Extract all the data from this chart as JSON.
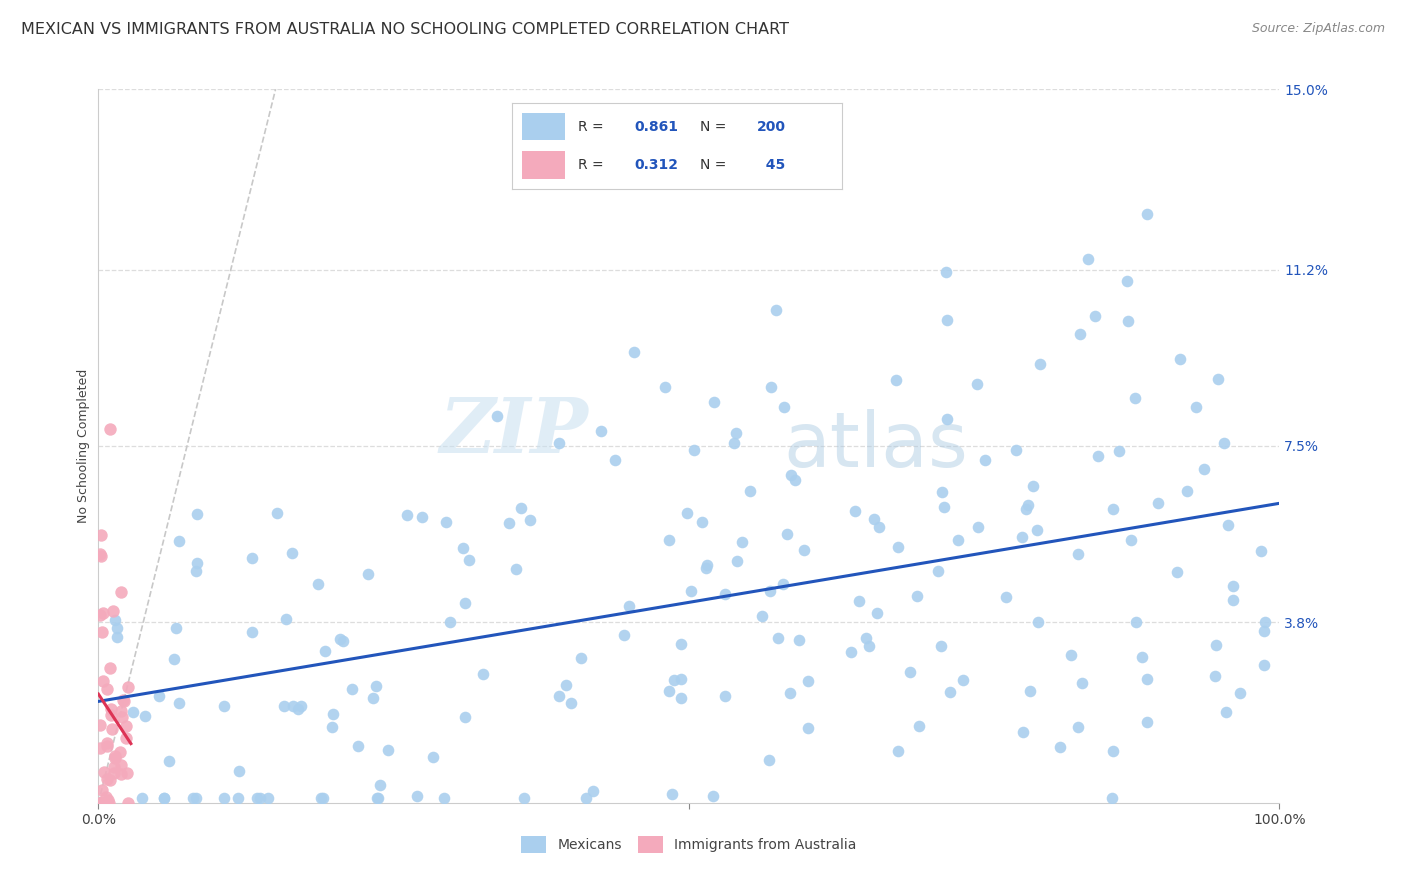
{
  "title": "MEXICAN VS IMMIGRANTS FROM AUSTRALIA NO SCHOOLING COMPLETED CORRELATION CHART",
  "source": "Source: ZipAtlas.com",
  "ylabel": "No Schooling Completed",
  "xlim": [
    0,
    1.0
  ],
  "ylim": [
    0,
    0.15
  ],
  "ytick_labels": [
    "3.8%",
    "7.5%",
    "11.2%",
    "15.0%"
  ],
  "ytick_values": [
    0.038,
    0.075,
    0.112,
    0.15
  ],
  "watermark_zip": "ZIP",
  "watermark_atlas": "atlas",
  "blue_color": "#aacfee",
  "pink_color": "#f4aabc",
  "blue_line_color": "#2255bb",
  "pink_line_color": "#dd3355",
  "diagonal_color": "#c8c8c8",
  "R_blue": 0.861,
  "N_blue": 200,
  "R_pink": 0.312,
  "N_pink": 45,
  "legend_blue_label": "Mexicans",
  "legend_pink_label": "Immigrants from Australia",
  "title_fontsize": 11.5,
  "source_fontsize": 9,
  "axis_label_fontsize": 9,
  "tick_fontsize": 10,
  "watermark_fontsize_zip": 55,
  "watermark_fontsize_atlas": 55,
  "background_color": "#ffffff",
  "grid_color": "#dddddd",
  "blue_scatter_size": 70,
  "pink_scatter_size": 80
}
